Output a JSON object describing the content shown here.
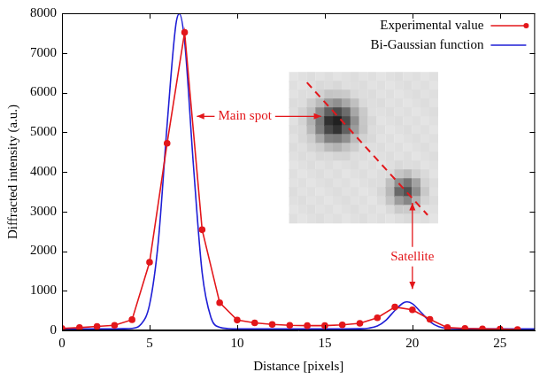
{
  "chart_data": {
    "type": "line",
    "x_label": "Distance [pixels]",
    "y_label": "Diffracted intensity (a.u.)",
    "xlim": [
      0,
      27
    ],
    "xticks": [
      0,
      5,
      10,
      15,
      20,
      25
    ],
    "ylim": [
      0,
      8000
    ],
    "yticks": [
      0,
      1000,
      2000,
      3000,
      4000,
      5000,
      6000,
      7000,
      8000
    ],
    "grid": false,
    "legend": "upper right",
    "series": [
      {
        "name": "Experimental value",
        "color": "#e3171b",
        "marker": "circle",
        "line_style": "solid",
        "x": [
          0,
          1,
          2,
          3,
          4,
          5,
          6,
          7,
          8,
          9,
          10,
          11,
          12,
          13,
          14,
          15,
          16,
          17,
          18,
          19,
          20,
          21,
          22,
          23,
          24,
          25,
          26
        ],
        "values": [
          50,
          70,
          100,
          130,
          270,
          1720,
          4720,
          7520,
          2540,
          700,
          260,
          190,
          150,
          130,
          120,
          120,
          140,
          180,
          320,
          590,
          520,
          280,
          70,
          50,
          40,
          30,
          20
        ]
      },
      {
        "name": "Bi-Gaussian function",
        "color": "#1f1fd6",
        "marker": "none",
        "line_style": "solid",
        "x": [
          0,
          1,
          2,
          3,
          3.5,
          4,
          4.5,
          5,
          5.5,
          6,
          6.5,
          6.7,
          7,
          7.5,
          8,
          8.5,
          9,
          9.5,
          10,
          12,
          14,
          16,
          17,
          17.5,
          18,
          18.5,
          19,
          19.5,
          19.7,
          20,
          20.5,
          21,
          21.5,
          22,
          23,
          25,
          27
        ],
        "values": [
          40,
          40,
          40,
          40,
          42,
          52,
          150,
          650,
          2250,
          5180,
          7710,
          7990,
          7290,
          4180,
          1460,
          330,
          76,
          45,
          40,
          40,
          40,
          40,
          42,
          56,
          111,
          261,
          504,
          699,
          720,
          674,
          453,
          222,
          94,
          51,
          40,
          40,
          40
        ]
      }
    ],
    "annotations": [
      {
        "text": "Main spot",
        "x": 7.6,
        "y": 5400
      },
      {
        "text": "Satellite",
        "x": 20,
        "y": 1000
      }
    ]
  }
}
